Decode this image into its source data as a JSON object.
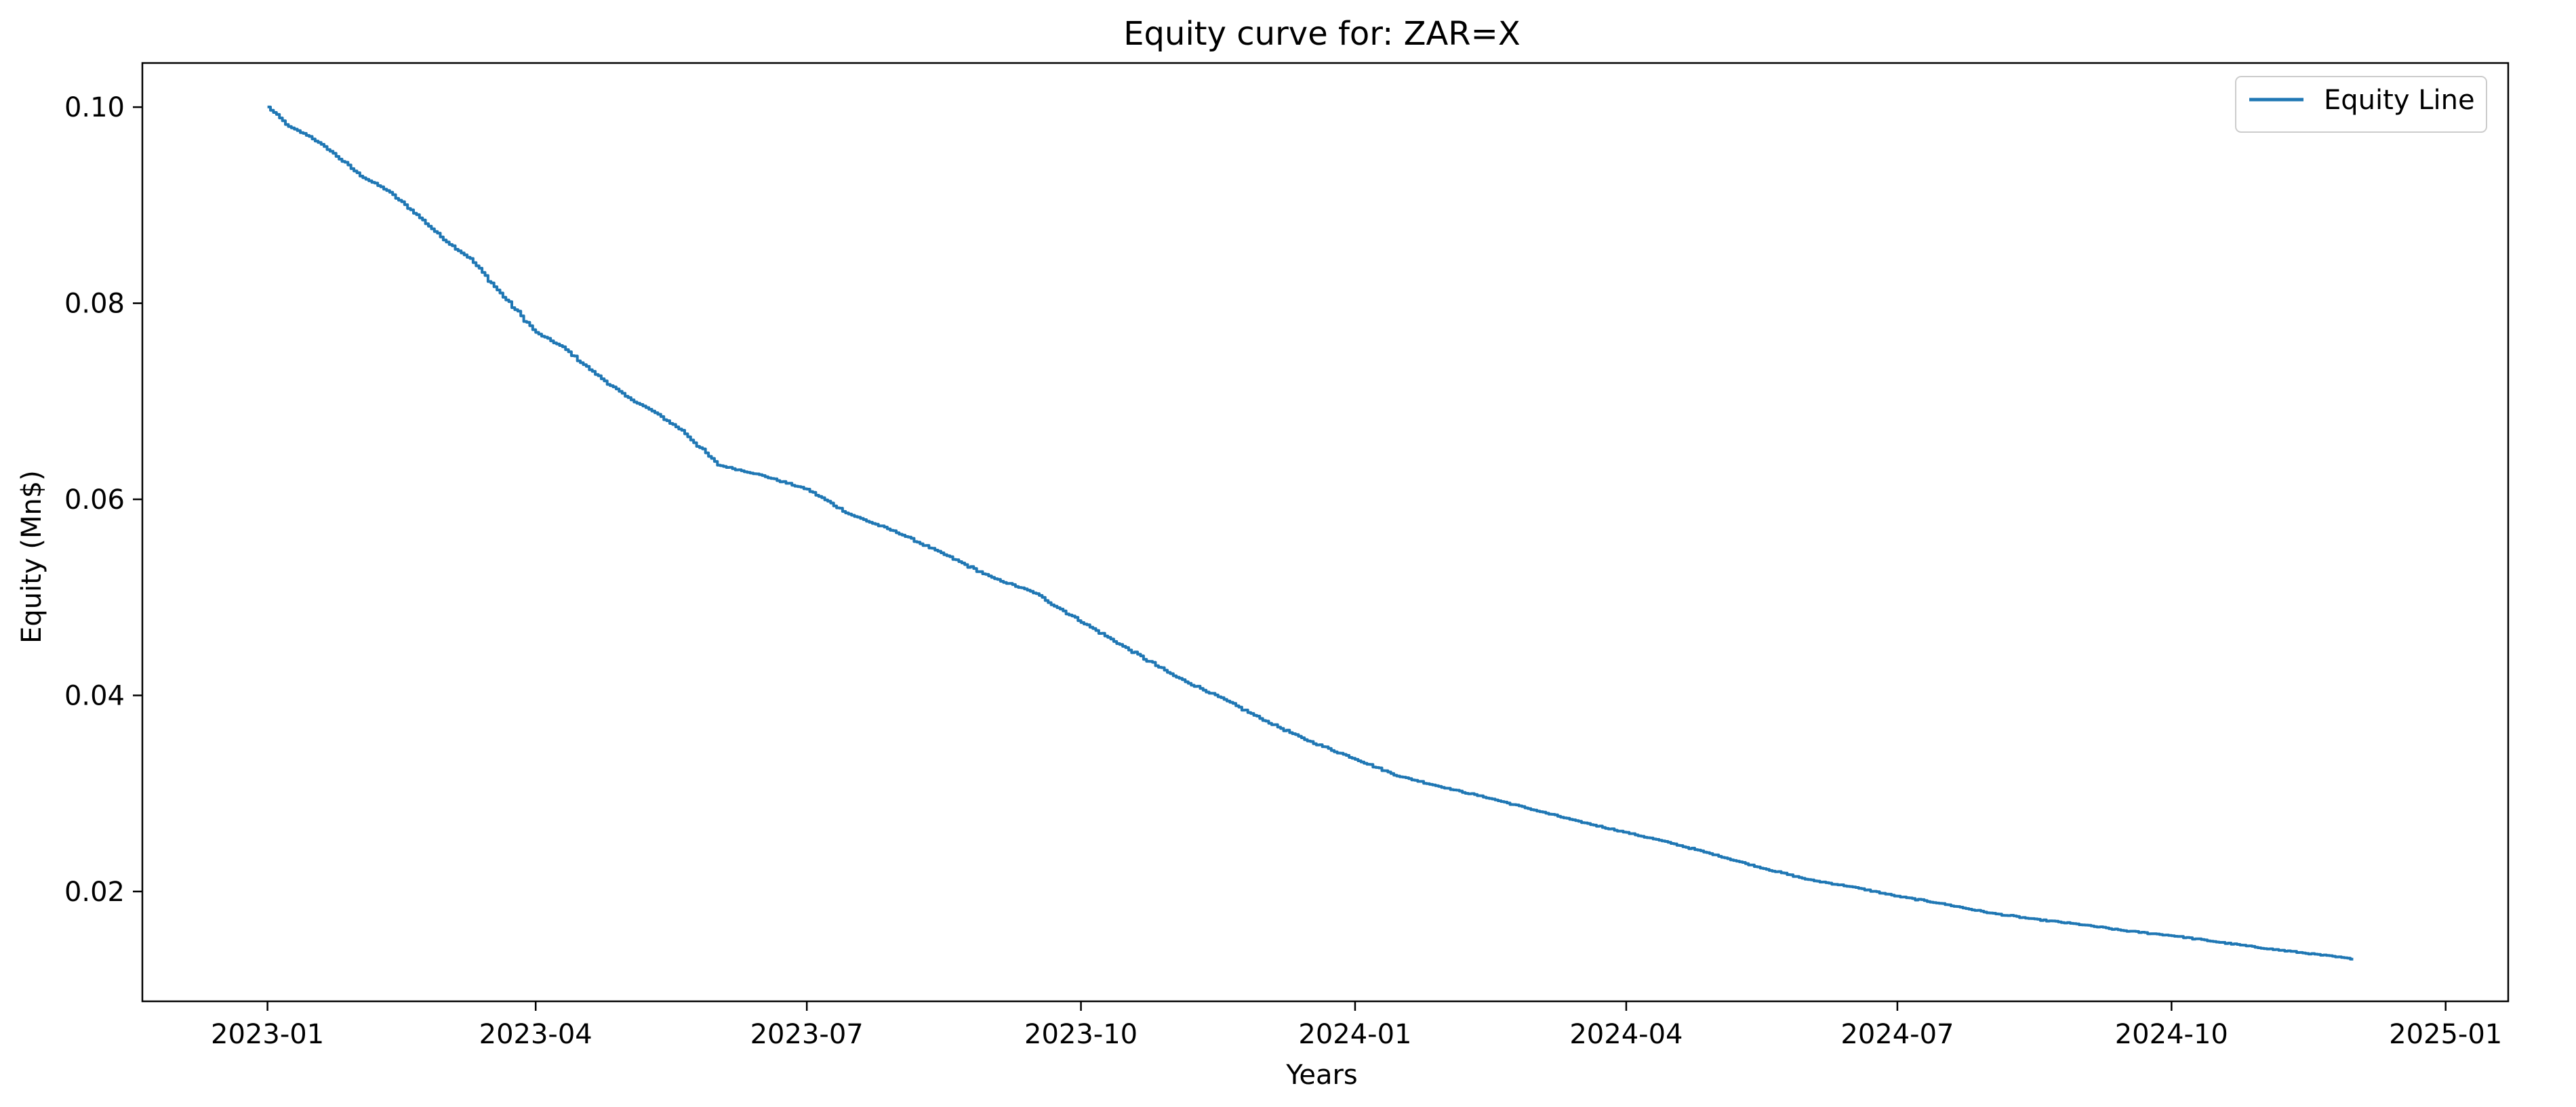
{
  "chart_data": {
    "type": "line",
    "title": "Equity curve for: ZAR=X",
    "xlabel": "Years",
    "ylabel": "Equity (Mn$)",
    "x_ticks": [
      "2023-01",
      "2023-04",
      "2023-07",
      "2023-10",
      "2024-01",
      "2024-04",
      "2024-07",
      "2024-10",
      "2025-01"
    ],
    "y_ticks": [
      "0.02",
      "0.04",
      "0.06",
      "0.08",
      "0.10"
    ],
    "xlim": [
      "2022-11-20",
      "2025-01-22"
    ],
    "ylim": [
      0.0088,
      0.1045
    ],
    "grid": false,
    "legend_position": "top-right",
    "series": [
      {
        "name": "Equity Line",
        "color": "#1f77b4",
        "x": [
          "2023-01-01",
          "2023-01-08",
          "2023-01-15",
          "2023-01-22",
          "2023-02-01",
          "2023-02-10",
          "2023-02-20",
          "2023-03-01",
          "2023-03-10",
          "2023-03-20",
          "2023-04-01",
          "2023-04-10",
          "2023-04-20",
          "2023-05-01",
          "2023-05-10",
          "2023-05-20",
          "2023-06-01",
          "2023-06-15",
          "2023-07-01",
          "2023-07-15",
          "2023-08-01",
          "2023-08-15",
          "2023-09-01",
          "2023-09-15",
          "2023-10-01",
          "2023-10-15",
          "2023-11-01",
          "2023-11-15",
          "2023-12-01",
          "2023-12-15",
          "2024-01-01",
          "2024-01-15",
          "2024-02-01",
          "2024-02-15",
          "2024-03-01",
          "2024-03-15",
          "2024-04-01",
          "2024-04-15",
          "2024-05-01",
          "2024-05-15",
          "2024-06-01",
          "2024-06-15",
          "2024-07-01",
          "2024-07-15",
          "2024-08-01",
          "2024-08-15",
          "2024-09-01",
          "2024-09-15",
          "2024-10-01",
          "2024-10-15",
          "2024-11-01",
          "2024-11-15",
          "2024-12-01"
        ],
        "y": [
          0.1,
          0.098,
          0.097,
          0.0955,
          0.093,
          0.0915,
          0.089,
          0.0865,
          0.0845,
          0.081,
          0.077,
          0.0755,
          0.073,
          0.0705,
          0.069,
          0.067,
          0.0635,
          0.0625,
          0.061,
          0.0585,
          0.0565,
          0.0545,
          0.052,
          0.0505,
          0.0475,
          0.045,
          0.042,
          0.04,
          0.0375,
          0.0355,
          0.0335,
          0.0318,
          0.0305,
          0.0295,
          0.0283,
          0.0272,
          0.026,
          0.025,
          0.0237,
          0.0225,
          0.0212,
          0.0205,
          0.0195,
          0.0188,
          0.0178,
          0.0172,
          0.0166,
          0.016,
          0.0155,
          0.0149,
          0.0142,
          0.0137,
          0.0131
        ]
      }
    ]
  }
}
